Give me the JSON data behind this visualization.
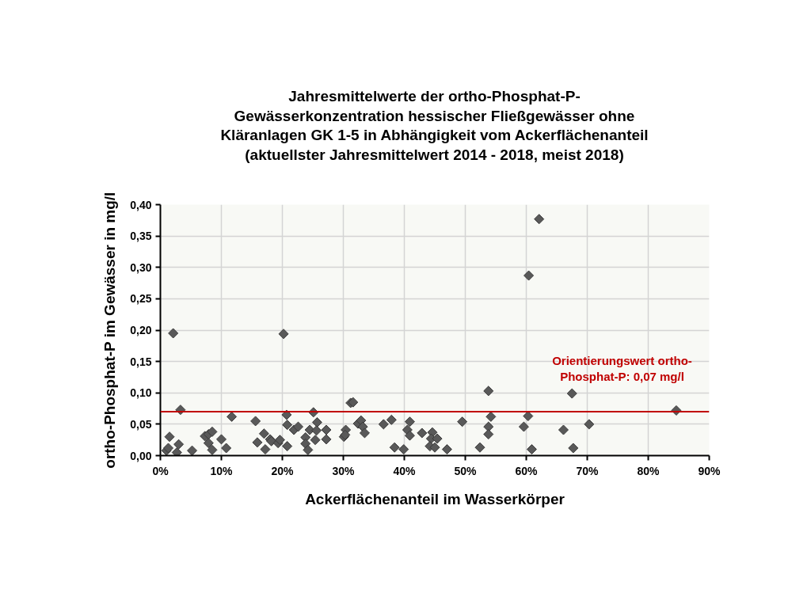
{
  "chart_data": {
    "type": "scatter",
    "title": "Jahresmittelwerte der ortho-Phosphat-P-\nGewässerkonzentration hessischer Fließgewässer ohne\nKläranlagen GK 1-5 in Abhängigkeit vom Ackerflächenanteil\n(aktuellster Jahresmittelwert 2014 - 2018, meist 2018)",
    "xlabel": "Ackerflächenanteil im Wasserkörper",
    "ylabel": "ortho-Phosphat-P im Gewässer in mg/l",
    "x": [
      1.0,
      1.3,
      1.5,
      2.1,
      2.7,
      3.0,
      3.3,
      5.2,
      7.3,
      7.9,
      7.9,
      8.5,
      8.5,
      10.0,
      10.8,
      11.7,
      15.6,
      15.9,
      17.0,
      17.2,
      18.0,
      18.2,
      19.3,
      19.6,
      20.2,
      20.7,
      20.8,
      20.8,
      21.9,
      22.6,
      23.8,
      23.8,
      24.2,
      24.5,
      25.1,
      25.7,
      25.6,
      25.4,
      27.2,
      27.2,
      30.1,
      30.4,
      30.3,
      31.2,
      31.6,
      32.4,
      32.9,
      33.2,
      33.5,
      36.6,
      37.9,
      38.4,
      39.9,
      40.5,
      40.9,
      40.9,
      42.9,
      44.6,
      44.4,
      45.4,
      44.2,
      45.0,
      47.0,
      49.5,
      52.4,
      53.8,
      54.2,
      53.8,
      53.8,
      59.6,
      60.3,
      60.4,
      60.9,
      62.1,
      67.5,
      66.1,
      70.3,
      67.7,
      84.6
    ],
    "values": [
      0.008,
      0.012,
      0.03,
      0.195,
      0.005,
      0.018,
      0.073,
      0.008,
      0.031,
      0.02,
      0.034,
      0.038,
      0.009,
      0.026,
      0.012,
      0.062,
      0.055,
      0.021,
      0.035,
      0.01,
      0.026,
      0.023,
      0.02,
      0.025,
      0.194,
      0.065,
      0.049,
      0.015,
      0.041,
      0.046,
      0.029,
      0.019,
      0.009,
      0.041,
      0.069,
      0.053,
      0.04,
      0.025,
      0.041,
      0.026,
      0.03,
      0.041,
      0.033,
      0.084,
      0.085,
      0.051,
      0.056,
      0.046,
      0.036,
      0.05,
      0.057,
      0.013,
      0.01,
      0.041,
      0.054,
      0.032,
      0.036,
      0.037,
      0.027,
      0.027,
      0.015,
      0.013,
      0.01,
      0.054,
      0.013,
      0.103,
      0.062,
      0.046,
      0.034,
      0.046,
      0.063,
      0.287,
      0.01,
      0.377,
      0.099,
      0.041,
      0.05,
      0.012,
      0.072
    ],
    "color": "#595959",
    "marker": "diamond",
    "xlim": [
      0,
      90
    ],
    "xticks": [
      {
        "value": 0,
        "label": "0%"
      },
      {
        "value": 10,
        "label": "10%"
      },
      {
        "value": 20,
        "label": "20%"
      },
      {
        "value": 30,
        "label": "30%"
      },
      {
        "value": 40,
        "label": "40%"
      },
      {
        "value": 50,
        "label": "50%"
      },
      {
        "value": 60,
        "label": "60%"
      },
      {
        "value": 70,
        "label": "70%"
      },
      {
        "value": 80,
        "label": "80%"
      },
      {
        "value": 90,
        "label": "90%"
      }
    ],
    "ylim": [
      0,
      0.4
    ],
    "yticks": [
      {
        "value": 0,
        "label": "0,00"
      },
      {
        "value": 0.05,
        "label": "0,05"
      },
      {
        "value": 0.1,
        "label": "0,10"
      },
      {
        "value": 0.15,
        "label": "0,15"
      },
      {
        "value": 0.2,
        "label": "0,20"
      },
      {
        "value": 0.25,
        "label": "0,25"
      },
      {
        "value": 0.3,
        "label": "0,30"
      },
      {
        "value": 0.35,
        "label": "0,35"
      },
      {
        "value": 0.4,
        "label": "0,40"
      }
    ],
    "grid": true,
    "ref_lines": [
      {
        "axis": "y",
        "value": 0.07,
        "label": "Orientierungswert ortho-Phosphat-P: 0,07 mg/l",
        "color": "#c00000"
      }
    ]
  }
}
